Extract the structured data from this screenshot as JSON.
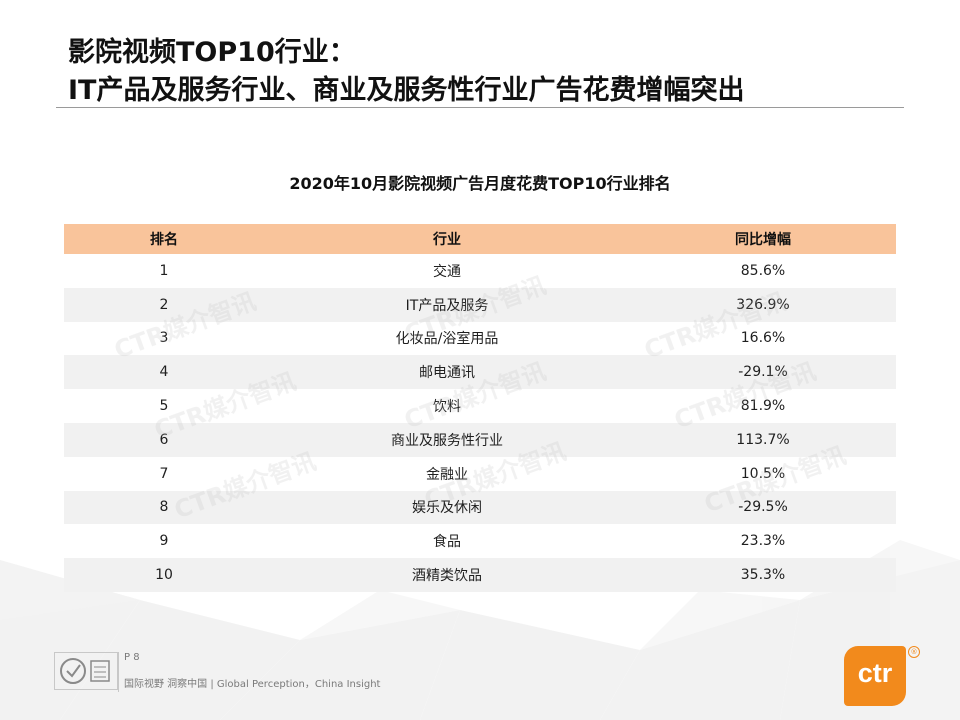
{
  "title": {
    "line1": "影院视频TOP10行业：",
    "line2": "IT产品及服务行业、商业及服务性行业广告花费增幅突出"
  },
  "table": {
    "title": "2020年10月影院视频广告月度花费TOP10行业排名",
    "headers": {
      "rank": "排名",
      "industry": "行业",
      "change": "同比增幅"
    },
    "rows": [
      {
        "rank": "1",
        "industry": "交通",
        "change": "85.6%"
      },
      {
        "rank": "2",
        "industry": "IT产品及服务",
        "change": "326.9%"
      },
      {
        "rank": "3",
        "industry": "化妆品/浴室用品",
        "change": "16.6%"
      },
      {
        "rank": "4",
        "industry": "邮电通讯",
        "change": "-29.1%"
      },
      {
        "rank": "5",
        "industry": "饮料",
        "change": "81.9%"
      },
      {
        "rank": "6",
        "industry": "商业及服务性行业",
        "change": "113.7%"
      },
      {
        "rank": "7",
        "industry": "金融业",
        "change": "10.5%"
      },
      {
        "rank": "8",
        "industry": "娱乐及休闲",
        "change": "-29.5%"
      },
      {
        "rank": "9",
        "industry": "食品",
        "change": "23.3%"
      },
      {
        "rank": "10",
        "industry": "酒精类饮品",
        "change": "35.3%"
      }
    ]
  },
  "watermark": "CTR媒介智讯",
  "footer": {
    "page": "P 8",
    "slogan": "国际视野  洞察中国 |  Global Perception，China Insight",
    "logo": "ctr",
    "reg_mark": "®"
  },
  "colors": {
    "header_bg": "#f9c49b",
    "alt_row_bg": "#f1f1f1",
    "logo_orange": "#f28a1c"
  }
}
